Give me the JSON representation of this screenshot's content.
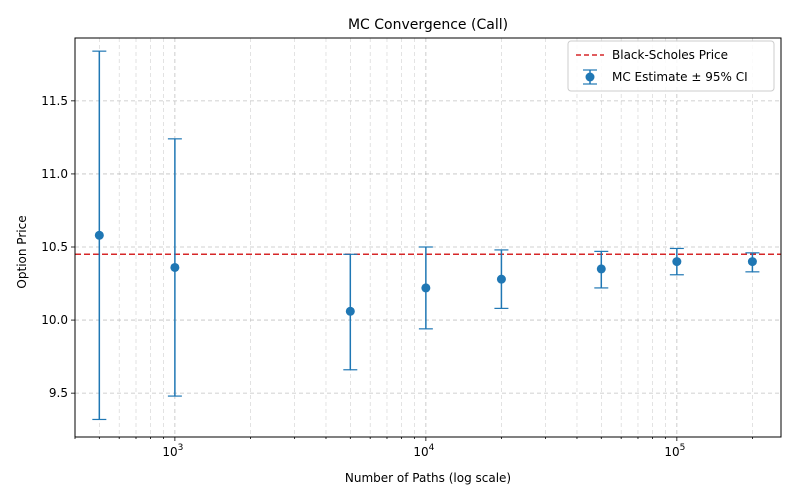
{
  "chart_data": {
    "type": "scatter",
    "title": "MC Convergence (Call)",
    "xlabel": "Number of Paths (log scale)",
    "ylabel": "Option Price",
    "x_scale": "log",
    "xlim": [
      400,
      260000
    ],
    "ylim": [
      9.2,
      11.93
    ],
    "grid": "on (major and minor x, dashed)",
    "legend_position": "top-right",
    "x_ticks": [
      {
        "value": 1000,
        "base": "10",
        "exp": "3"
      },
      {
        "value": 10000,
        "base": "10",
        "exp": "4"
      },
      {
        "value": 100000,
        "base": "10",
        "exp": "5"
      }
    ],
    "y_ticks": [
      {
        "value": 9.5,
        "label": "9.5"
      },
      {
        "value": 10.0,
        "label": "10.0"
      },
      {
        "value": 10.5,
        "label": "10.5"
      },
      {
        "value": 11.0,
        "label": "11.0"
      },
      {
        "value": 11.5,
        "label": "11.5"
      }
    ],
    "reference_line": {
      "name": "Black-Scholes Price",
      "value": 10.45,
      "color": "#d62728",
      "style": "dashed"
    },
    "series": [
      {
        "name": "MC Estimate ± 95% CI",
        "color": "#1f77b4",
        "points": [
          {
            "x": 500,
            "y": 10.58,
            "lo": 9.32,
            "hi": 11.84
          },
          {
            "x": 1000,
            "y": 10.36,
            "lo": 9.48,
            "hi": 11.24
          },
          {
            "x": 5000,
            "y": 10.06,
            "lo": 9.66,
            "hi": 10.45
          },
          {
            "x": 10000,
            "y": 10.22,
            "lo": 9.94,
            "hi": 10.5
          },
          {
            "x": 20000,
            "y": 10.28,
            "lo": 10.08,
            "hi": 10.48
          },
          {
            "x": 50000,
            "y": 10.35,
            "lo": 10.22,
            "hi": 10.47
          },
          {
            "x": 100000,
            "y": 10.4,
            "lo": 10.31,
            "hi": 10.49
          },
          {
            "x": 200000,
            "y": 10.4,
            "lo": 10.33,
            "hi": 10.46
          }
        ]
      }
    ]
  }
}
